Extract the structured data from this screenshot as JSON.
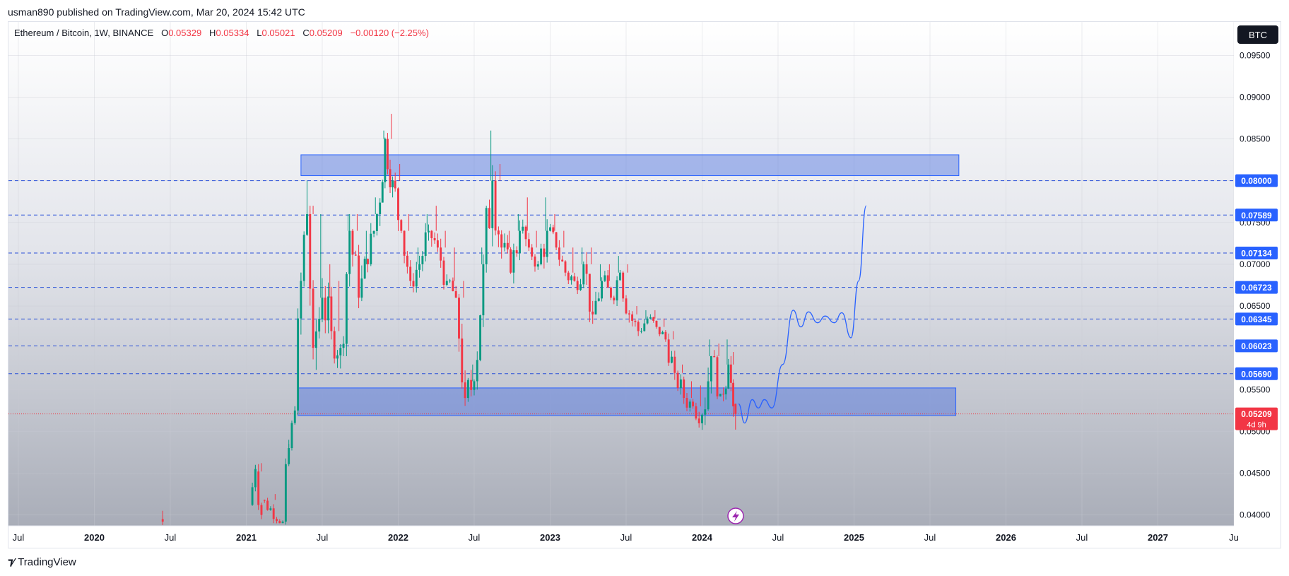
{
  "publisher": "usman890 published on TradingView.com, Mar 20, 2024 15:42 UTC",
  "legend": {
    "symbol": "Ethereum / Bitcoin, 1W, BINANCE",
    "open_label": "O",
    "open": "0.05329",
    "high_label": "H",
    "high": "0.05334",
    "low_label": "L",
    "low": "0.05021",
    "close_label": "C",
    "close": "0.05209",
    "change": "−0.00120 (−2.25%)"
  },
  "currency": "BTC",
  "footer": {
    "brand": "TradingView"
  },
  "colors": {
    "up": "#089981",
    "down": "#f23645",
    "zone_fill": "#4a6ee0",
    "zone_stroke": "#2962ff",
    "level_line": "#2950d8",
    "label_bg": "#2962ff",
    "last_price": "#f23645"
  },
  "chart_data": {
    "type": "candlestick",
    "symbol": "ETHBTC",
    "timeframe": "1W",
    "y_axis": {
      "ticks": [
        "0.09500",
        "0.09000",
        "0.08500",
        "0.08000",
        "0.07500",
        "0.07000",
        "0.06500",
        "0.06000",
        "0.05500",
        "0.05000",
        "0.04500",
        "0.04000"
      ],
      "range": [
        0.0387,
        0.099
      ]
    },
    "x_axis": {
      "ticks": [
        {
          "label": "Jul",
          "t": 2019.5
        },
        {
          "label": "2020",
          "t": 2020.0
        },
        {
          "label": "Jul",
          "t": 2020.5
        },
        {
          "label": "2021",
          "t": 2021.0
        },
        {
          "label": "Jul",
          "t": 2021.5
        },
        {
          "label": "2022",
          "t": 2022.0
        },
        {
          "label": "Jul",
          "t": 2022.5
        },
        {
          "label": "2023",
          "t": 2023.0
        },
        {
          "label": "Jul",
          "t": 2023.5
        },
        {
          "label": "2024",
          "t": 2024.0
        },
        {
          "label": "Jul",
          "t": 2024.5
        },
        {
          "label": "2025",
          "t": 2025.0
        },
        {
          "label": "Jul",
          "t": 2025.5
        },
        {
          "label": "2026",
          "t": 2026.0
        },
        {
          "label": "Jul",
          "t": 2026.5
        },
        {
          "label": "2027",
          "t": 2027.0
        },
        {
          "label": "Ju",
          "t": 2027.5
        }
      ],
      "range": [
        2019.435,
        2027.5
      ]
    },
    "levels": [
      {
        "value": 0.08,
        "label": "0.08000"
      },
      {
        "value": 0.07589,
        "label": "0.07589"
      },
      {
        "value": 0.07134,
        "label": "0.07134"
      },
      {
        "value": 0.06723,
        "label": "0.06723"
      },
      {
        "value": 0.06345,
        "label": "0.06345"
      },
      {
        "value": 0.06023,
        "label": "0.06023"
      },
      {
        "value": 0.0569,
        "label": "0.05690"
      }
    ],
    "last_price": {
      "value": 0.05209,
      "label": "0.05209",
      "countdown": "4d 9h"
    },
    "zones": [
      {
        "t_start": 2021.36,
        "t_end": 2025.69,
        "top": 0.0831,
        "bottom": 0.0806
      },
      {
        "t_start": 2021.34,
        "t_end": 2025.67,
        "top": 0.0552,
        "bottom": 0.0519
      }
    ],
    "projection": [
      [
        2024.24,
        0.0533
      ],
      [
        2024.28,
        0.051
      ],
      [
        2024.33,
        0.0538
      ],
      [
        2024.37,
        0.0528
      ],
      [
        2024.41,
        0.0538
      ],
      [
        2024.46,
        0.0528
      ],
      [
        2024.53,
        0.058
      ],
      [
        2024.6,
        0.0645
      ],
      [
        2024.65,
        0.0625
      ],
      [
        2024.7,
        0.0643
      ],
      [
        2024.76,
        0.063
      ],
      [
        2024.81,
        0.0638
      ],
      [
        2024.87,
        0.063
      ],
      [
        2024.92,
        0.0642
      ],
      [
        2024.98,
        0.0612
      ],
      [
        2025.03,
        0.068
      ],
      [
        2025.08,
        0.077
      ]
    ],
    "candles_monthly": [
      {
        "t": 2020.45,
        "o": 0.0395,
        "h": 0.0405,
        "l": 0.0388,
        "c": 0.0392
      },
      {
        "t": 2021.04,
        "o": 0.0412,
        "h": 0.046,
        "l": 0.0395,
        "c": 0.0455
      },
      {
        "t": 2021.08,
        "o": 0.0452,
        "h": 0.0462,
        "l": 0.0395,
        "c": 0.04
      },
      {
        "t": 2021.12,
        "o": 0.0418,
        "h": 0.0425,
        "l": 0.039,
        "c": 0.0392
      },
      {
        "t": 2021.26,
        "o": 0.0392,
        "h": 0.049,
        "l": 0.0388,
        "c": 0.048
      },
      {
        "t": 2021.3,
        "o": 0.048,
        "h": 0.053,
        "l": 0.0475,
        "c": 0.0525
      },
      {
        "t": 2021.34,
        "o": 0.0525,
        "h": 0.069,
        "l": 0.052,
        "c": 0.068
      },
      {
        "t": 2021.38,
        "o": 0.068,
        "h": 0.08,
        "l": 0.06,
        "c": 0.076
      },
      {
        "t": 2021.42,
        "o": 0.076,
        "h": 0.077,
        "l": 0.056,
        "c": 0.06
      },
      {
        "t": 2021.46,
        "o": 0.06,
        "h": 0.076,
        "l": 0.055,
        "c": 0.066
      },
      {
        "t": 2021.52,
        "o": 0.066,
        "h": 0.07,
        "l": 0.058,
        "c": 0.062
      },
      {
        "t": 2021.58,
        "o": 0.062,
        "h": 0.068,
        "l": 0.057,
        "c": 0.06
      },
      {
        "t": 2021.64,
        "o": 0.06,
        "h": 0.076,
        "l": 0.059,
        "c": 0.074
      },
      {
        "t": 2021.7,
        "o": 0.074,
        "h": 0.076,
        "l": 0.064,
        "c": 0.066
      },
      {
        "t": 2021.76,
        "o": 0.066,
        "h": 0.074,
        "l": 0.062,
        "c": 0.07
      },
      {
        "t": 2021.82,
        "o": 0.07,
        "h": 0.078,
        "l": 0.068,
        "c": 0.076
      },
      {
        "t": 2021.88,
        "o": 0.076,
        "h": 0.086,
        "l": 0.074,
        "c": 0.085
      },
      {
        "t": 2021.93,
        "o": 0.085,
        "h": 0.088,
        "l": 0.078,
        "c": 0.08
      },
      {
        "t": 2021.98,
        "o": 0.08,
        "h": 0.082,
        "l": 0.072,
        "c": 0.074
      },
      {
        "t": 2022.04,
        "o": 0.074,
        "h": 0.076,
        "l": 0.066,
        "c": 0.068
      },
      {
        "t": 2022.1,
        "o": 0.068,
        "h": 0.072,
        "l": 0.065,
        "c": 0.07
      },
      {
        "t": 2022.16,
        "o": 0.07,
        "h": 0.076,
        "l": 0.068,
        "c": 0.074
      },
      {
        "t": 2022.22,
        "o": 0.074,
        "h": 0.077,
        "l": 0.07,
        "c": 0.072
      },
      {
        "t": 2022.28,
        "o": 0.072,
        "h": 0.074,
        "l": 0.066,
        "c": 0.068
      },
      {
        "t": 2022.34,
        "o": 0.068,
        "h": 0.072,
        "l": 0.064,
        "c": 0.066
      },
      {
        "t": 2022.4,
        "o": 0.066,
        "h": 0.068,
        "l": 0.052,
        "c": 0.054
      },
      {
        "t": 2022.46,
        "o": 0.054,
        "h": 0.058,
        "l": 0.049,
        "c": 0.056
      },
      {
        "t": 2022.52,
        "o": 0.056,
        "h": 0.072,
        "l": 0.055,
        "c": 0.07
      },
      {
        "t": 2022.58,
        "o": 0.07,
        "h": 0.086,
        "l": 0.069,
        "c": 0.08
      },
      {
        "t": 2022.64,
        "o": 0.08,
        "h": 0.082,
        "l": 0.068,
        "c": 0.072
      },
      {
        "t": 2022.7,
        "o": 0.072,
        "h": 0.074,
        "l": 0.066,
        "c": 0.069
      },
      {
        "t": 2022.76,
        "o": 0.069,
        "h": 0.076,
        "l": 0.067,
        "c": 0.074
      },
      {
        "t": 2022.82,
        "o": 0.074,
        "h": 0.078,
        "l": 0.07,
        "c": 0.072
      },
      {
        "t": 2022.88,
        "o": 0.072,
        "h": 0.074,
        "l": 0.069,
        "c": 0.07
      },
      {
        "t": 2022.94,
        "o": 0.07,
        "h": 0.078,
        "l": 0.068,
        "c": 0.074
      },
      {
        "t": 2023.0,
        "o": 0.074,
        "h": 0.076,
        "l": 0.07,
        "c": 0.072
      },
      {
        "t": 2023.06,
        "o": 0.072,
        "h": 0.074,
        "l": 0.068,
        "c": 0.069
      },
      {
        "t": 2023.12,
        "o": 0.069,
        "h": 0.072,
        "l": 0.066,
        "c": 0.068
      },
      {
        "t": 2023.18,
        "o": 0.068,
        "h": 0.072,
        "l": 0.065,
        "c": 0.07
      },
      {
        "t": 2023.24,
        "o": 0.07,
        "h": 0.072,
        "l": 0.062,
        "c": 0.064
      },
      {
        "t": 2023.3,
        "o": 0.064,
        "h": 0.07,
        "l": 0.062,
        "c": 0.068
      },
      {
        "t": 2023.36,
        "o": 0.068,
        "h": 0.07,
        "l": 0.064,
        "c": 0.066
      },
      {
        "t": 2023.42,
        "o": 0.066,
        "h": 0.071,
        "l": 0.065,
        "c": 0.069
      },
      {
        "t": 2023.48,
        "o": 0.069,
        "h": 0.07,
        "l": 0.062,
        "c": 0.064
      },
      {
        "t": 2023.54,
        "o": 0.064,
        "h": 0.065,
        "l": 0.06,
        "c": 0.062
      },
      {
        "t": 2023.6,
        "o": 0.062,
        "h": 0.0645,
        "l": 0.0605,
        "c": 0.0635
      },
      {
        "t": 2023.66,
        "o": 0.0635,
        "h": 0.0645,
        "l": 0.061,
        "c": 0.0625
      },
      {
        "t": 2023.72,
        "o": 0.0625,
        "h": 0.0635,
        "l": 0.06,
        "c": 0.061
      },
      {
        "t": 2023.78,
        "o": 0.061,
        "h": 0.062,
        "l": 0.056,
        "c": 0.057
      },
      {
        "t": 2023.84,
        "o": 0.057,
        "h": 0.058,
        "l": 0.052,
        "c": 0.054
      },
      {
        "t": 2023.9,
        "o": 0.054,
        "h": 0.056,
        "l": 0.051,
        "c": 0.053
      },
      {
        "t": 2023.96,
        "o": 0.053,
        "h": 0.0555,
        "l": 0.05,
        "c": 0.052
      },
      {
        "t": 2024.02,
        "o": 0.052,
        "h": 0.061,
        "l": 0.048,
        "c": 0.059
      },
      {
        "t": 2024.08,
        "o": 0.059,
        "h": 0.0605,
        "l": 0.053,
        "c": 0.0545
      },
      {
        "t": 2024.14,
        "o": 0.0545,
        "h": 0.061,
        "l": 0.052,
        "c": 0.058
      },
      {
        "t": 2024.19,
        "o": 0.058,
        "h": 0.0595,
        "l": 0.05,
        "c": 0.053
      },
      {
        "t": 2024.22,
        "o": 0.05329,
        "h": 0.05334,
        "l": 0.05021,
        "c": 0.05209
      }
    ]
  }
}
